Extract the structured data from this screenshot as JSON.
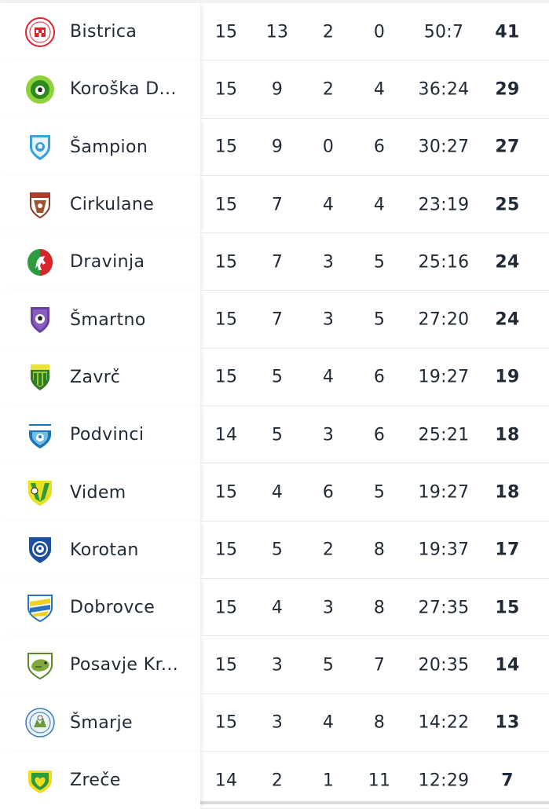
{
  "standings": [
    {
      "team": "Bistrica",
      "logo": "bistrica-crest-icon",
      "played": "15",
      "won": "13",
      "drawn": "2",
      "lost": "0",
      "goals": "50:7",
      "points": "41"
    },
    {
      "team": "Koroška D...",
      "logo": "koroska-crest-icon",
      "played": "15",
      "won": "9",
      "drawn": "2",
      "lost": "4",
      "goals": "36:24",
      "points": "29"
    },
    {
      "team": "Šampion",
      "logo": "sampion-crest-icon",
      "played": "15",
      "won": "9",
      "drawn": "0",
      "lost": "6",
      "goals": "30:27",
      "points": "27"
    },
    {
      "team": "Cirkulane",
      "logo": "cirkulane-crest-icon",
      "played": "15",
      "won": "7",
      "drawn": "4",
      "lost": "4",
      "goals": "23:19",
      "points": "25"
    },
    {
      "team": "Dravinja",
      "logo": "dravinja-crest-icon",
      "played": "15",
      "won": "7",
      "drawn": "3",
      "lost": "5",
      "goals": "25:16",
      "points": "24"
    },
    {
      "team": "Šmartno",
      "logo": "smartno-crest-icon",
      "played": "15",
      "won": "7",
      "drawn": "3",
      "lost": "5",
      "goals": "27:20",
      "points": "24"
    },
    {
      "team": "Zavrč",
      "logo": "zavrc-crest-icon",
      "played": "15",
      "won": "5",
      "drawn": "4",
      "lost": "6",
      "goals": "19:27",
      "points": "19"
    },
    {
      "team": "Podvinci",
      "logo": "podvinci-crest-icon",
      "played": "14",
      "won": "5",
      "drawn": "3",
      "lost": "6",
      "goals": "25:21",
      "points": "18"
    },
    {
      "team": "Videm",
      "logo": "videm-crest-icon",
      "played": "15",
      "won": "4",
      "drawn": "6",
      "lost": "5",
      "goals": "19:27",
      "points": "18"
    },
    {
      "team": "Korotan",
      "logo": "korotan-crest-icon",
      "played": "15",
      "won": "5",
      "drawn": "2",
      "lost": "8",
      "goals": "19:37",
      "points": "17"
    },
    {
      "team": "Dobrovce",
      "logo": "dobrovce-crest-icon",
      "played": "15",
      "won": "4",
      "drawn": "3",
      "lost": "8",
      "goals": "27:35",
      "points": "15"
    },
    {
      "team": "Posavje Kr...",
      "logo": "posavje-crest-icon",
      "played": "15",
      "won": "3",
      "drawn": "5",
      "lost": "7",
      "goals": "20:35",
      "points": "14"
    },
    {
      "team": "Šmarje",
      "logo": "smarje-crest-icon",
      "played": "15",
      "won": "3",
      "drawn": "4",
      "lost": "8",
      "goals": "14:22",
      "points": "13"
    },
    {
      "team": "Zreče",
      "logo": "zrece-crest-icon",
      "played": "14",
      "won": "2",
      "drawn": "1",
      "lost": "11",
      "goals": "12:29",
      "points": "7"
    }
  ]
}
